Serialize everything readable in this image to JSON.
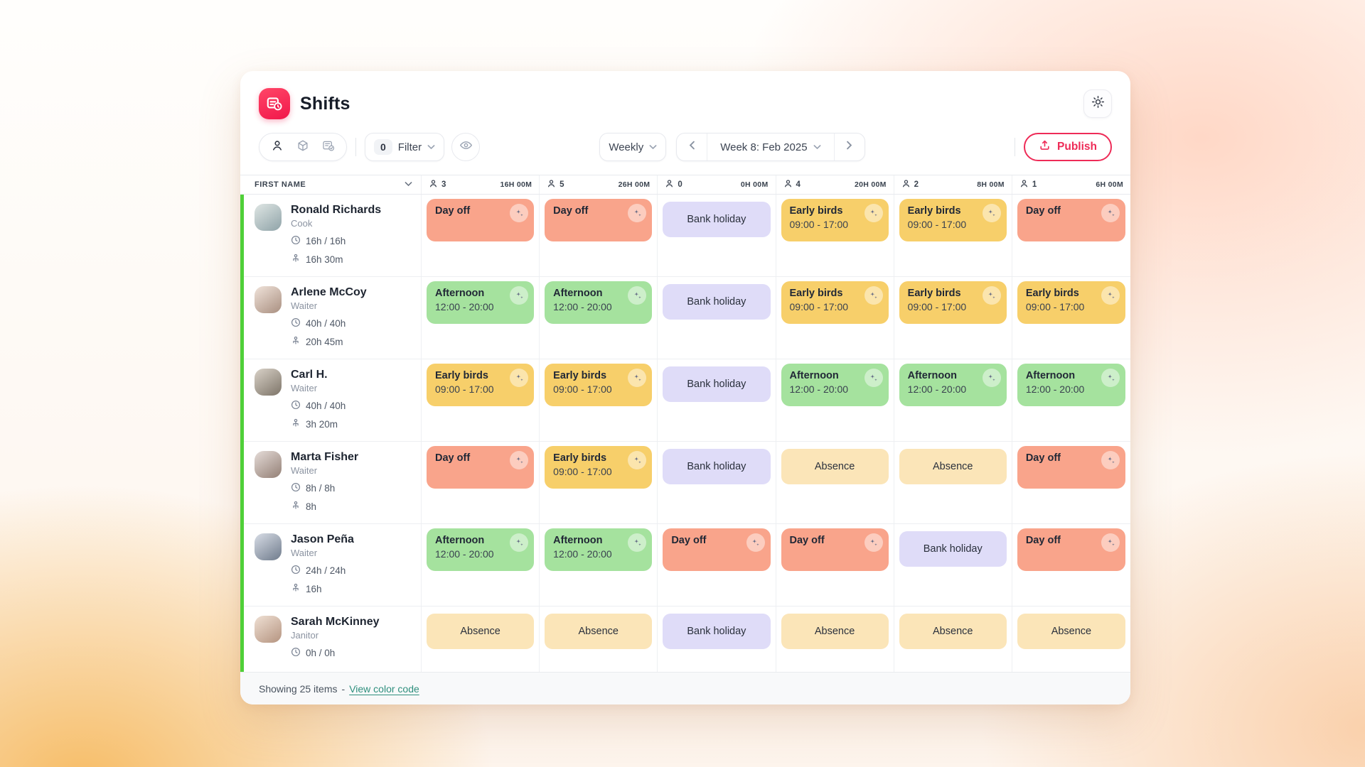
{
  "app": {
    "title": "Shifts"
  },
  "toolbar": {
    "view_toggles": [
      "people-view",
      "items-view",
      "shifts-view"
    ],
    "filter_count": "0",
    "filter_label": "Filter",
    "period_label": "Weekly",
    "week_label": "Week 8: Feb 2025",
    "publish_label": "Publish"
  },
  "colors": {
    "accent": "#ee2b57",
    "day_off": "#f9a48b",
    "shift_yellow": "#f7cf6a",
    "shift_green": "#a5e29e",
    "bank_holiday": "#dfdcf8",
    "absence": "#fbe5b8",
    "row_bar": "#4fd038",
    "link": "#2e8f7d"
  },
  "table": {
    "first_col_header": "FIRST NAME",
    "day_columns": [
      {
        "count": "3",
        "hours": "16H 00M"
      },
      {
        "count": "5",
        "hours": "26H 00M"
      },
      {
        "count": "0",
        "hours": "0H 00M"
      },
      {
        "count": "4",
        "hours": "20H 00M"
      },
      {
        "count": "2",
        "hours": "8H 00M"
      },
      {
        "count": "1",
        "hours": "6H 00M"
      }
    ],
    "rows": [
      {
        "name": "Ronald Richards",
        "role": "Cook",
        "scheduled": "16h / 16h",
        "secondary": "16h 30m",
        "cells": [
          {
            "type": "day-off",
            "title": "Day off",
            "sparkle": true
          },
          {
            "type": "day-off",
            "title": "Day off",
            "sparkle": true
          },
          {
            "type": "bank-holiday",
            "title": "Bank holiday"
          },
          {
            "type": "early-birds",
            "title": "Early birds",
            "time": "09:00 - 17:00",
            "sparkle": true
          },
          {
            "type": "early-birds",
            "title": "Early birds",
            "time": "09:00 - 17:00",
            "sparkle": true
          },
          {
            "type": "day-off",
            "title": "Day off",
            "sparkle": true
          }
        ]
      },
      {
        "name": "Arlene McCoy",
        "role": "Waiter",
        "scheduled": "40h / 40h",
        "secondary": "20h 45m",
        "cells": [
          {
            "type": "afternoon",
            "title": "Afternoon",
            "time": "12:00 - 20:00",
            "sparkle": true
          },
          {
            "type": "afternoon",
            "title": "Afternoon",
            "time": "12:00 - 20:00",
            "sparkle": true
          },
          {
            "type": "bank-holiday",
            "title": "Bank holiday"
          },
          {
            "type": "early-birds",
            "title": "Early birds",
            "time": "09:00 - 17:00",
            "sparkle": true
          },
          {
            "type": "early-birds",
            "title": "Early birds",
            "time": "09:00 - 17:00",
            "sparkle": true
          },
          {
            "type": "early-birds",
            "title": "Early birds",
            "time": "09:00 - 17:00",
            "sparkle": true
          }
        ]
      },
      {
        "name": "Carl H.",
        "role": "Waiter",
        "scheduled": "40h / 40h",
        "secondary": "3h 20m",
        "cells": [
          {
            "type": "early-birds",
            "title": "Early birds",
            "time": "09:00 - 17:00",
            "sparkle": true
          },
          {
            "type": "early-birds",
            "title": "Early birds",
            "time": "09:00 - 17:00",
            "sparkle": true
          },
          {
            "type": "bank-holiday",
            "title": "Bank holiday"
          },
          {
            "type": "afternoon",
            "title": "Afternoon",
            "time": "12:00 - 20:00",
            "sparkle": true
          },
          {
            "type": "afternoon",
            "title": "Afternoon",
            "time": "12:00 - 20:00",
            "sparkle": true
          },
          {
            "type": "afternoon",
            "title": "Afternoon",
            "time": "12:00 - 20:00",
            "sparkle": true
          }
        ]
      },
      {
        "name": "Marta Fisher",
        "role": "Waiter",
        "scheduled": "8h / 8h",
        "secondary": "8h",
        "cells": [
          {
            "type": "day-off",
            "title": "Day off",
            "sparkle": true
          },
          {
            "type": "early-birds",
            "title": "Early birds",
            "time": "09:00 - 17:00",
            "sparkle": true
          },
          {
            "type": "bank-holiday",
            "title": "Bank holiday"
          },
          {
            "type": "absence",
            "title": "Absence"
          },
          {
            "type": "absence",
            "title": "Absence"
          },
          {
            "type": "day-off",
            "title": "Day off",
            "sparkle": true
          }
        ]
      },
      {
        "name": "Jason Peña",
        "role": "Waiter",
        "scheduled": "24h / 24h",
        "secondary": "16h",
        "cells": [
          {
            "type": "afternoon",
            "title": "Afternoon",
            "time": "12:00 - 20:00",
            "sparkle": true
          },
          {
            "type": "afternoon",
            "title": "Afternoon",
            "time": "12:00 - 20:00",
            "sparkle": true
          },
          {
            "type": "day-off",
            "title": "Day off",
            "sparkle": true
          },
          {
            "type": "day-off",
            "title": "Day off",
            "sparkle": true
          },
          {
            "type": "bank-holiday",
            "title": "Bank holiday"
          },
          {
            "type": "day-off",
            "title": "Day off",
            "sparkle": true
          }
        ]
      },
      {
        "name": "Sarah McKinney",
        "role": "Janitor",
        "scheduled": "0h / 0h",
        "secondary": "",
        "cells": [
          {
            "type": "absence",
            "title": "Absence"
          },
          {
            "type": "absence",
            "title": "Absence"
          },
          {
            "type": "bank-holiday",
            "title": "Bank holiday"
          },
          {
            "type": "absence",
            "title": "Absence"
          },
          {
            "type": "absence",
            "title": "Absence"
          },
          {
            "type": "absence",
            "title": "Absence"
          }
        ]
      }
    ]
  },
  "footer": {
    "showing": "Showing 25 items",
    "separator": "-",
    "link": "View color code"
  }
}
